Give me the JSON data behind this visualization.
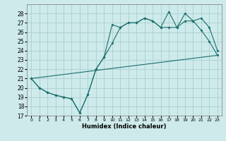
{
  "xlabel": "Humidex (Indice chaleur)",
  "xlim": [
    -0.5,
    23.5
  ],
  "ylim": [
    17,
    29
  ],
  "yticks": [
    17,
    18,
    19,
    20,
    21,
    22,
    23,
    24,
    25,
    26,
    27,
    28
  ],
  "xticks": [
    0,
    1,
    2,
    3,
    4,
    5,
    6,
    7,
    8,
    9,
    10,
    11,
    12,
    13,
    14,
    15,
    16,
    17,
    18,
    19,
    20,
    21,
    22,
    23
  ],
  "bg_color": "#ceeaea",
  "grid_color": "#aacfcf",
  "line_color": "#1a6e6e",
  "line1_x": [
    0,
    1,
    2,
    3,
    4,
    5,
    6,
    7,
    8,
    9,
    10,
    11,
    12,
    13,
    14,
    15,
    16,
    17,
    18,
    19,
    20,
    21,
    22,
    23
  ],
  "line1_y": [
    21.0,
    20.0,
    19.5,
    19.2,
    19.0,
    18.8,
    17.3,
    19.3,
    22.0,
    23.3,
    26.8,
    26.5,
    27.0,
    27.0,
    27.5,
    27.2,
    26.5,
    28.2,
    26.5,
    28.0,
    27.2,
    26.2,
    25.0,
    23.5
  ],
  "line2_x": [
    0,
    1,
    2,
    3,
    4,
    5,
    6,
    7,
    8,
    9,
    10,
    11,
    12,
    13,
    14,
    15,
    16,
    17,
    18,
    19,
    20,
    21,
    22,
    23
  ],
  "line2_y": [
    21.0,
    20.0,
    19.5,
    19.2,
    19.0,
    18.8,
    17.3,
    19.3,
    22.0,
    23.3,
    24.8,
    26.5,
    27.0,
    27.0,
    27.5,
    27.2,
    26.5,
    26.5,
    26.5,
    27.2,
    27.2,
    27.5,
    26.5,
    24.0
  ],
  "line3_x": [
    0,
    23
  ],
  "line3_y": [
    21.0,
    23.5
  ]
}
